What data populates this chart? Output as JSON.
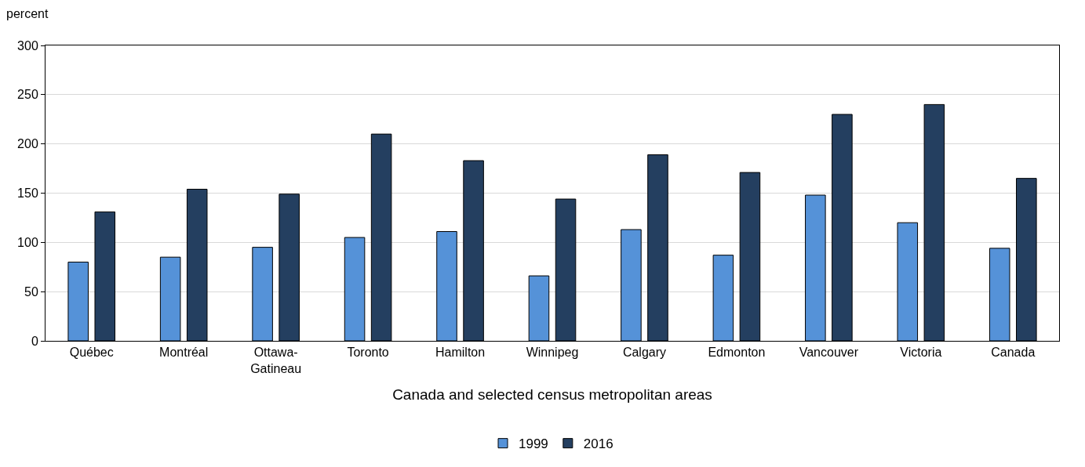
{
  "chart_data": {
    "type": "bar",
    "xlabel": "Canada and selected census metropolitan areas",
    "ylabel": "percent",
    "categories": [
      "Québec",
      "Montréal",
      "Ottawa-\nGatineau",
      "Toronto",
      "Hamilton",
      "Winnipeg",
      "Calgary",
      "Edmonton",
      "Vancouver",
      "Victoria",
      "Canada"
    ],
    "series": [
      {
        "name": "1999",
        "color": "#5592d8",
        "values": [
          80,
          85,
          95,
          105,
          111,
          66,
          113,
          87,
          148,
          120,
          94
        ]
      },
      {
        "name": "2016",
        "color": "#243f60",
        "values": [
          131,
          154,
          149,
          210,
          183,
          144,
          189,
          171,
          230,
          240,
          165
        ]
      }
    ],
    "ylim": [
      0,
      300
    ],
    "yticks": [
      0,
      50,
      100,
      150,
      200,
      250,
      300
    ],
    "grid": "y",
    "legend": "bottom"
  }
}
